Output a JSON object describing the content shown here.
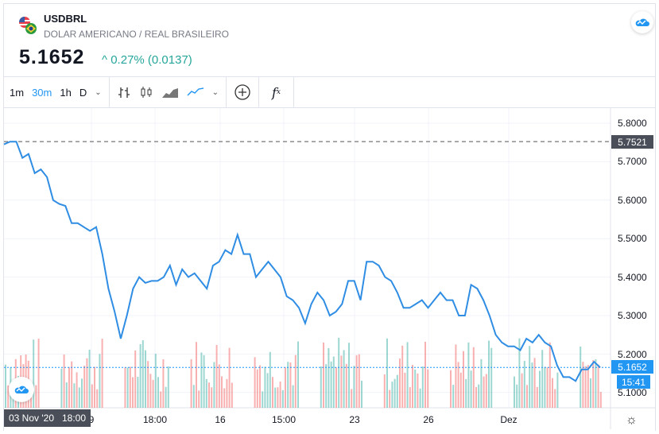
{
  "header": {
    "symbol": "USDBRL",
    "description": "DOLAR AMERICANO / REAL BRASILEIRO",
    "price": "5.1652",
    "change_arrow": "^",
    "change": "0.27% (0.0137)"
  },
  "toolbar": {
    "intervals": [
      "1m",
      "30m",
      "1h",
      "D"
    ],
    "active_interval": "30m"
  },
  "colors": {
    "line": "#2f8de4",
    "up": "#26a69a",
    "down": "#ef5350",
    "accent": "#2196f3"
  },
  "chart_data": {
    "type": "line",
    "symbol": "USDBRL",
    "yticks": [
      "5.8000",
      "5.7000",
      "5.6000",
      "5.5000",
      "5.4000",
      "5.3000",
      "5.2000",
      "5.1000"
    ],
    "ylim": [
      5.06,
      5.83
    ],
    "xticks": [
      "9",
      "18:00",
      "16",
      "15:00",
      "23",
      "26",
      "Dez"
    ],
    "high_line": {
      "value": 5.7521,
      "label": "5.7521"
    },
    "last": {
      "value": 5.1652,
      "label": "5.1652",
      "countdown": "15:41"
    },
    "crosshair_time": "03 Nov '20   18:00",
    "prices": [
      5.745,
      5.752,
      5.752,
      5.71,
      5.72,
      5.67,
      5.68,
      5.66,
      5.6,
      5.59,
      5.585,
      5.54,
      5.54,
      5.53,
      5.52,
      5.53,
      5.46,
      5.37,
      5.31,
      5.24,
      5.3,
      5.37,
      5.4,
      5.385,
      5.39,
      5.39,
      5.4,
      5.43,
      5.38,
      5.42,
      5.4,
      5.41,
      5.39,
      5.37,
      5.43,
      5.44,
      5.47,
      5.46,
      5.51,
      5.46,
      5.46,
      5.4,
      5.42,
      5.44,
      5.42,
      5.4,
      5.35,
      5.34,
      5.32,
      5.28,
      5.33,
      5.36,
      5.34,
      5.3,
      5.31,
      5.33,
      5.39,
      5.39,
      5.34,
      5.44,
      5.44,
      5.43,
      5.4,
      5.39,
      5.36,
      5.32,
      5.32,
      5.33,
      5.34,
      5.32,
      5.34,
      5.36,
      5.34,
      5.34,
      5.3,
      5.3,
      5.38,
      5.37,
      5.34,
      5.3,
      5.25,
      5.23,
      5.22,
      5.22,
      5.21,
      5.24,
      5.23,
      5.25,
      5.23,
      5.22,
      5.17,
      5.14,
      5.14,
      5.13,
      5.16,
      5.16,
      5.18,
      5.165
    ]
  }
}
